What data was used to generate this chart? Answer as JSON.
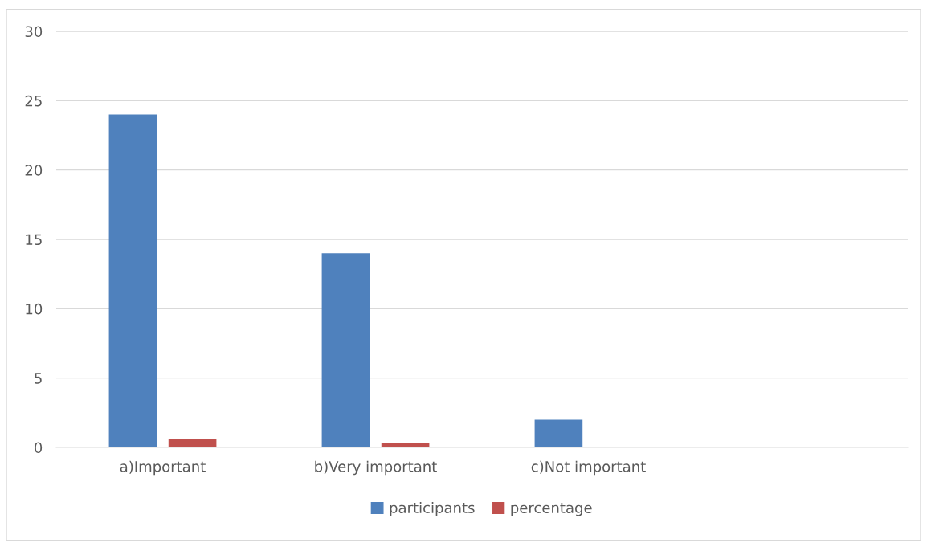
{
  "chart_data": {
    "type": "bar",
    "categories": [
      "a)Important",
      "b)Very important",
      "c)Not important",
      null
    ],
    "series": [
      {
        "name": "participants",
        "color": "#4f81bd",
        "values": [
          24,
          14,
          2,
          null
        ]
      },
      {
        "name": "percentage",
        "color": "#c0504d",
        "values": [
          0.6,
          0.35,
          0.05,
          null
        ]
      }
    ],
    "ylim": [
      0,
      30
    ],
    "yticks": [
      0,
      5,
      10,
      15,
      20,
      25,
      30
    ],
    "grid": "y",
    "legend": "bottom"
  }
}
